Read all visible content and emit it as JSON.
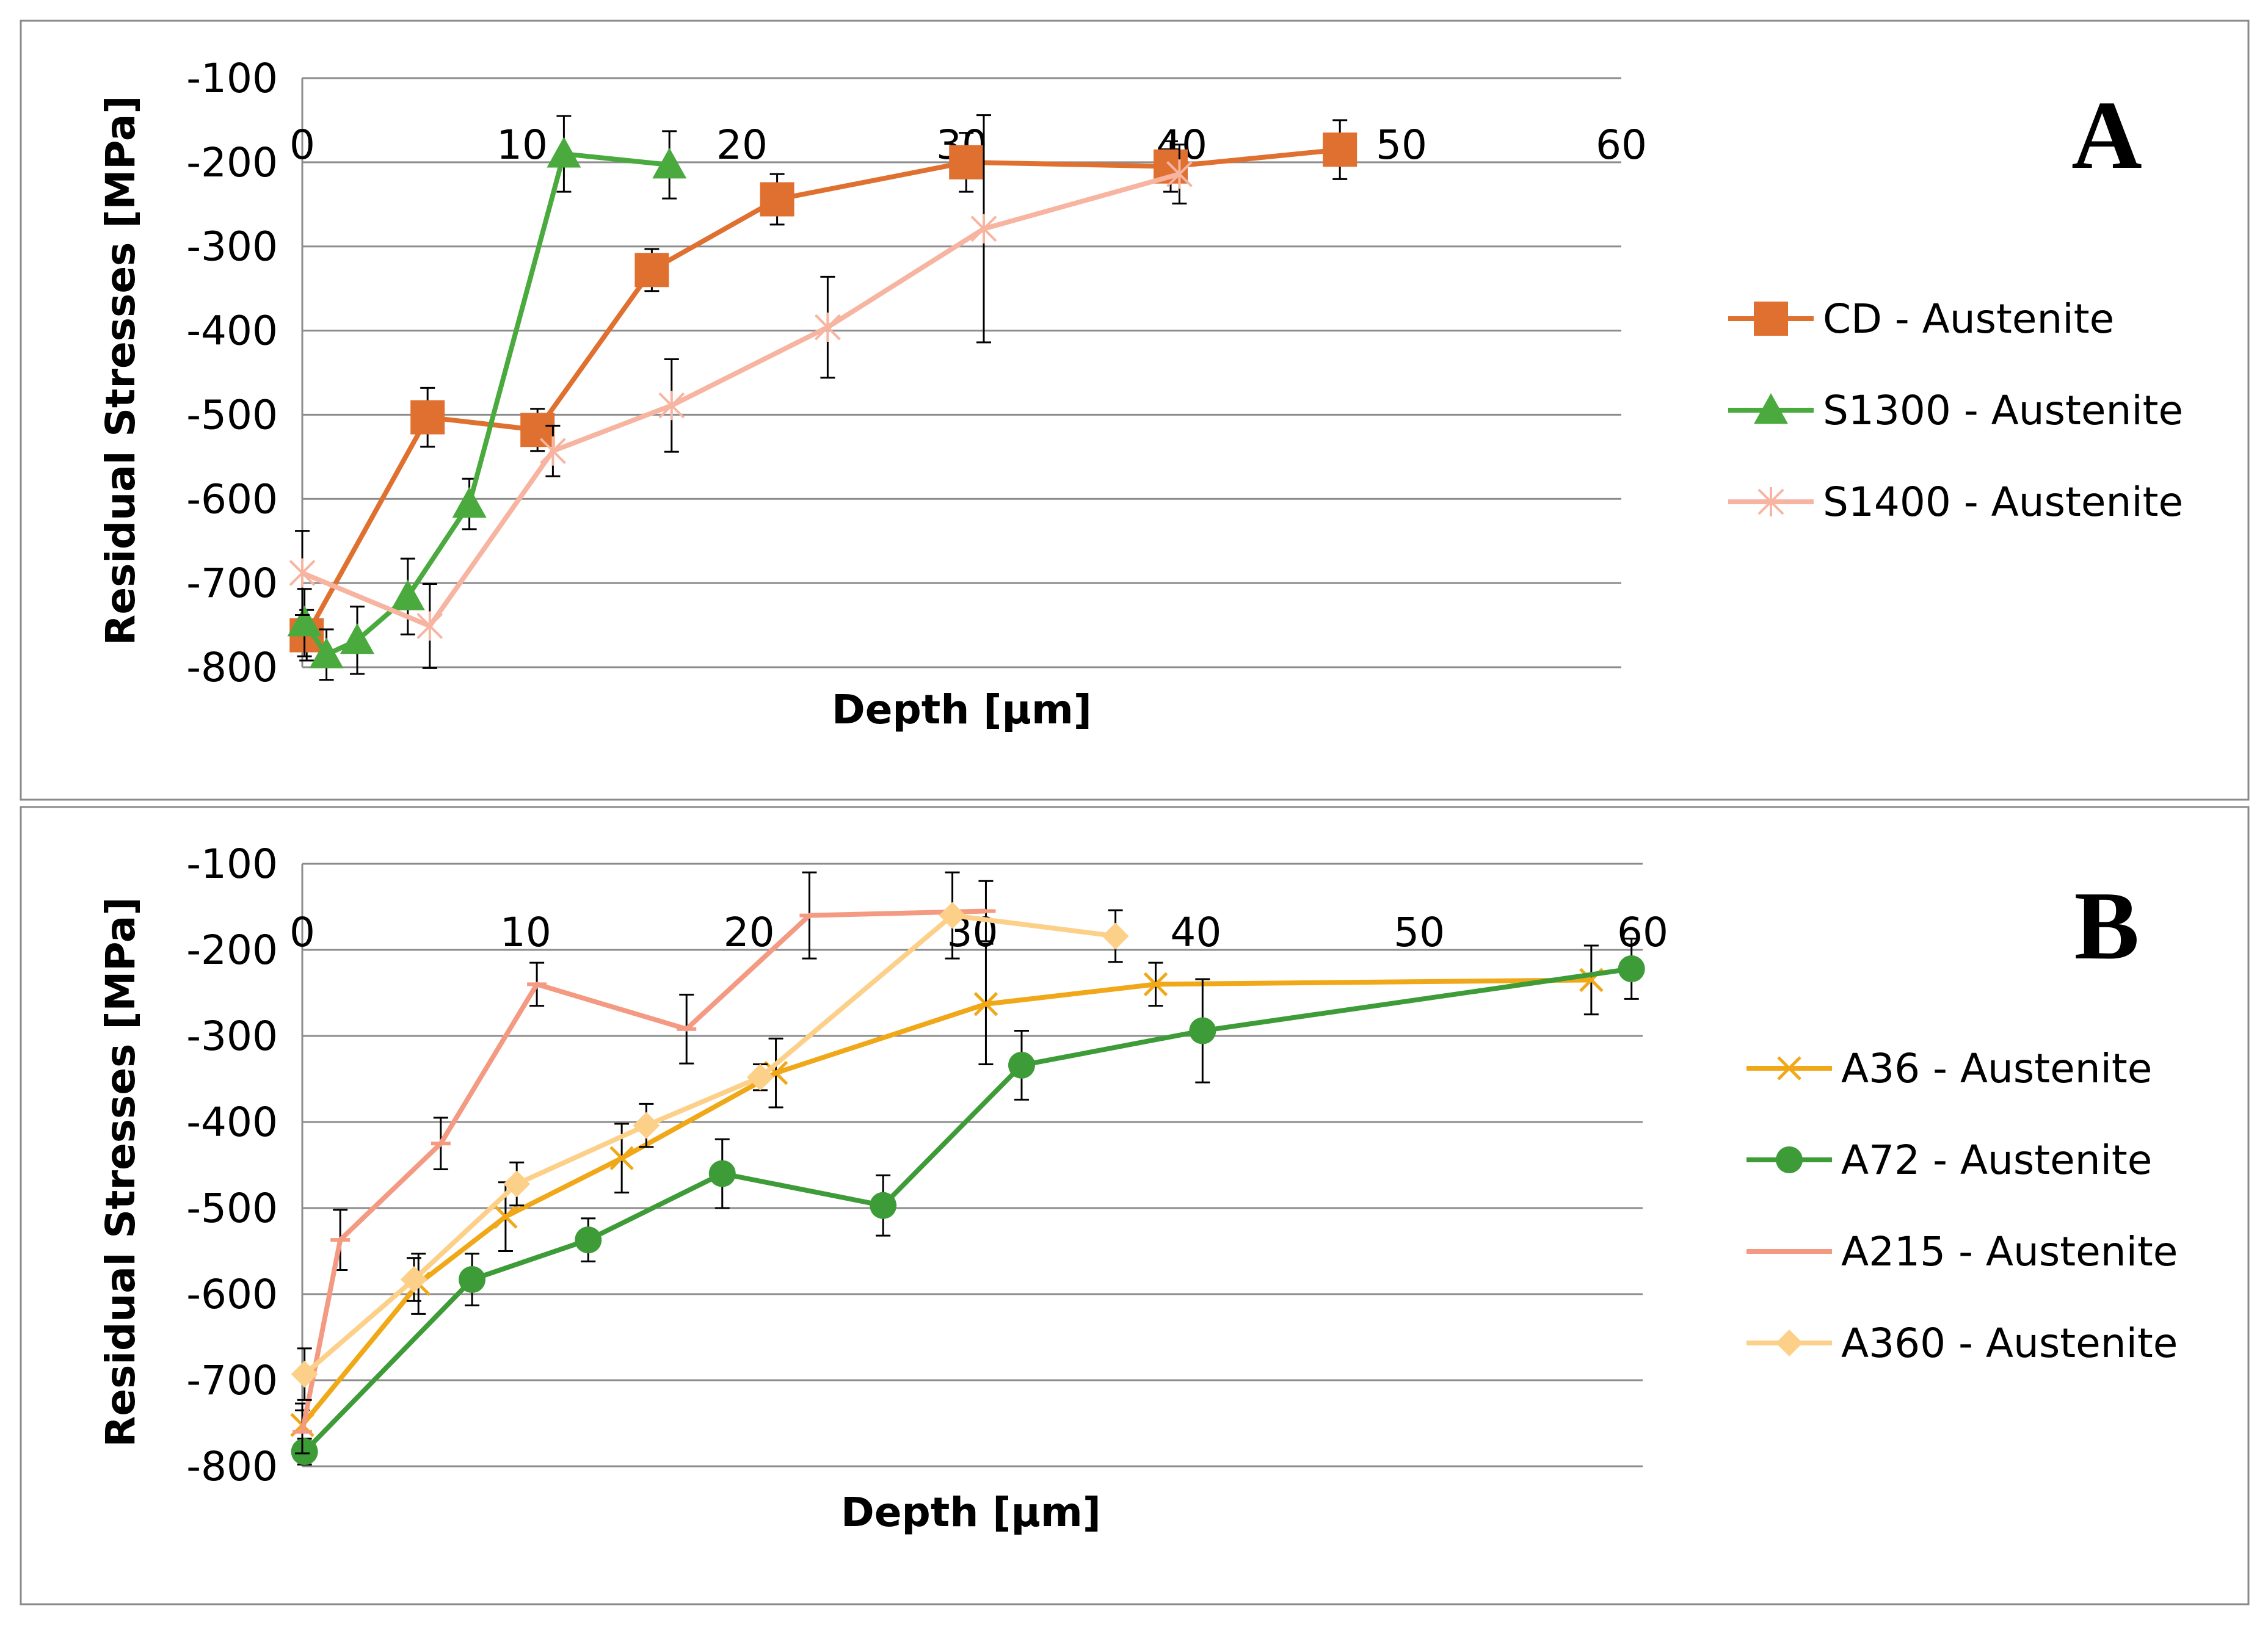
{
  "chart_data": [
    {
      "type": "line",
      "panel_label": "A",
      "xlabel": "Depth [µm]",
      "ylabel": "Residual Stresses [MPa]",
      "xlim": [
        0,
        60
      ],
      "ylim": [
        -800,
        -100
      ],
      "x_ticks": [
        "0",
        "10",
        "20",
        "30",
        "40",
        "50",
        "60"
      ],
      "y_ticks": [
        "-100",
        "-200",
        "-300",
        "-400",
        "-500",
        "-600",
        "-700",
        "-800"
      ],
      "grid": "horizontal",
      "legend_position": "right",
      "series": [
        {
          "name": "CD - Austenite",
          "color": "#e07030",
          "marker": "square",
          "x": [
            0.2,
            5.7,
            10.7,
            15.9,
            21.6,
            30.2,
            39.5,
            47.2
          ],
          "y": [
            -762,
            -503,
            -518,
            -328,
            -244,
            -200,
            -205,
            -185
          ],
          "err": [
            30,
            35,
            25,
            25,
            30,
            35,
            30,
            35
          ]
        },
        {
          "name": "S1300 - Austenite",
          "color": "#4aaa3e",
          "marker": "triangle",
          "x": [
            0.1,
            1.1,
            2.5,
            4.8,
            7.6,
            11.9,
            16.7
          ],
          "y": [
            -747,
            -785,
            -768,
            -716,
            -606,
            -190,
            -203
          ],
          "err": [
            40,
            30,
            40,
            45,
            30,
            45,
            40
          ]
        },
        {
          "name": "S1400 - Austenite",
          "color": "#f7b4a0",
          "marker": "star",
          "x": [
            0,
            5.8,
            11.4,
            16.8,
            23.9,
            31.0,
            39.9
          ],
          "y": [
            -688,
            -751,
            -543,
            -489,
            -396,
            -279,
            -214
          ],
          "err": [
            50,
            50,
            30,
            55,
            60,
            135,
            35
          ]
        }
      ]
    },
    {
      "type": "line",
      "panel_label": "B",
      "xlabel": "Depth [µm]",
      "ylabel": "Residual Stresses [MPa]",
      "xlim": [
        0,
        60
      ],
      "ylim": [
        -800,
        -100
      ],
      "x_ticks": [
        "0",
        "10",
        "20",
        "30",
        "40",
        "50",
        "60"
      ],
      "y_ticks": [
        "-100",
        "-200",
        "-300",
        "-400",
        "-500",
        "-600",
        "-700",
        "-800"
      ],
      "grid": "horizontal",
      "legend_position": "right",
      "series": [
        {
          "name": "A36 - Austenite",
          "color": "#f0a818",
          "marker": "x",
          "x": [
            0,
            5.2,
            9.1,
            14.3,
            21.2,
            30.6,
            38.2,
            57.7
          ],
          "y": [
            -752,
            -588,
            -510,
            -442,
            -343,
            -263,
            -240,
            -235
          ],
          "err": [
            25,
            35,
            40,
            40,
            40,
            70,
            25,
            40
          ]
        },
        {
          "name": "A72 - Austenite",
          "color": "#3e9c38",
          "marker": "circle",
          "x": [
            0.1,
            7.6,
            12.8,
            18.8,
            26.0,
            32.2,
            40.3,
            59.5
          ],
          "y": [
            -783,
            -583,
            -537,
            -460,
            -497,
            -334,
            -294,
            -222
          ],
          "err": [
            15,
            30,
            25,
            40,
            35,
            40,
            60,
            35
          ]
        },
        {
          "name": "A215 - Austenite",
          "color": "#f49a82",
          "marker": "dash",
          "x": [
            0,
            1.7,
            6.2,
            10.5,
            17.2,
            22.7,
            30.6
          ],
          "y": [
            -760,
            -537,
            -425,
            -240,
            -292,
            -160,
            -155
          ],
          "err": [
            25,
            35,
            30,
            25,
            40,
            50,
            35
          ]
        },
        {
          "name": "A360 - Austenite",
          "color": "#fcd088",
          "marker": "diamond",
          "x": [
            0.1,
            5.0,
            9.6,
            15.4,
            20.5,
            29.1,
            36.4
          ],
          "y": [
            -693,
            -583,
            -472,
            -404,
            -348,
            -160,
            -184
          ],
          "err": [
            30,
            25,
            25,
            25,
            15,
            50,
            30
          ]
        }
      ]
    }
  ]
}
